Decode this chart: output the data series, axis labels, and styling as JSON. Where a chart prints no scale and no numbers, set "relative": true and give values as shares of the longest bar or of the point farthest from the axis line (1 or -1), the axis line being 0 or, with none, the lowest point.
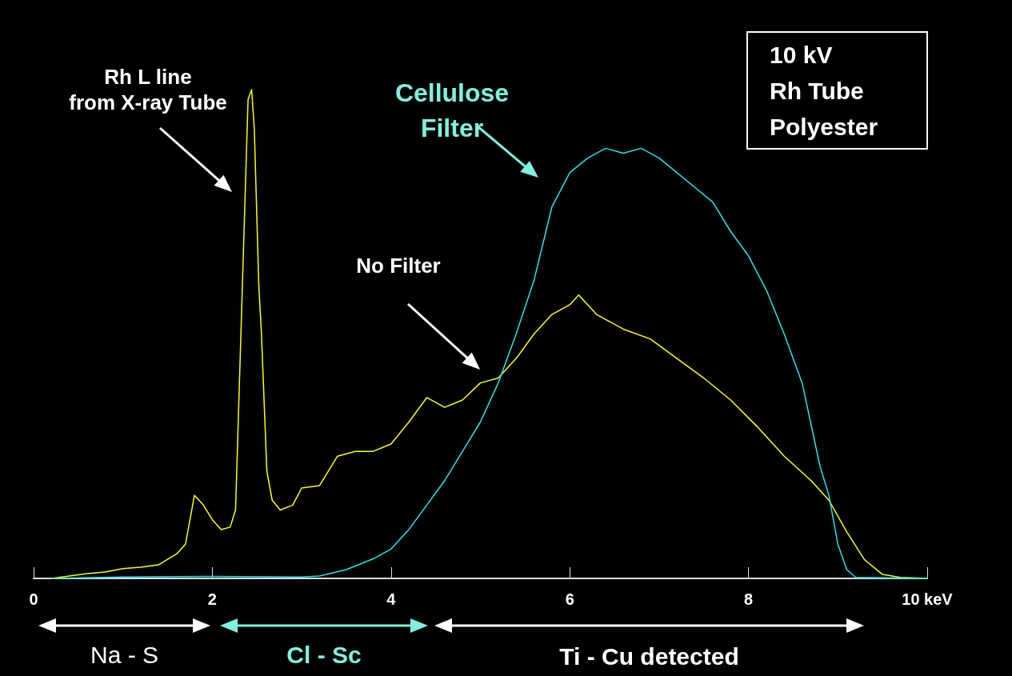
{
  "chart_data": {
    "type": "line",
    "relative": true,
    "xlim": [
      0,
      10
    ],
    "xticks": [
      0,
      2,
      4,
      6,
      8,
      {
        "value": 10,
        "label": "10 keV"
      }
    ],
    "grid": false,
    "marker": "none",
    "line_style": "solid",
    "series": [
      {
        "color": "#ffff00",
        "x": [
          0.2,
          0.4,
          0.6,
          0.8,
          1.0,
          1.2,
          1.4,
          1.6,
          1.7,
          1.8,
          1.9,
          2.0,
          2.1,
          2.2,
          2.26,
          2.4,
          2.44,
          2.47,
          2.52,
          2.55,
          2.61,
          2.67,
          2.76,
          2.9,
          3.0,
          3.2,
          3.4,
          3.6,
          3.8,
          4.0,
          4.2,
          4.4,
          4.6,
          4.8,
          5.0,
          5.2,
          5.4,
          5.6,
          5.8,
          6.0,
          6.1,
          6.3,
          6.6,
          6.9,
          7.2,
          7.5,
          7.8,
          8.1,
          8.4,
          8.7,
          8.9,
          9.1,
          9.3,
          9.5,
          9.7,
          10
        ],
        "values": [
          0,
          0.005,
          0.01,
          0.013,
          0.02,
          0.023,
          0.028,
          0.05,
          0.07,
          0.17,
          0.15,
          0.12,
          0.1,
          0.105,
          0.14,
          0.98,
          1,
          0.92,
          0.6,
          0.5,
          0.22,
          0.16,
          0.14,
          0.15,
          0.185,
          0.19,
          0.25,
          0.26,
          0.26,
          0.275,
          0.32,
          0.37,
          0.35,
          0.365,
          0.4,
          0.41,
          0.45,
          0.5,
          0.54,
          0.56,
          0.58,
          0.54,
          0.51,
          0.49,
          0.45,
          0.41,
          0.365,
          0.31,
          0.25,
          0.2,
          0.16,
          0.095,
          0.038,
          0.008,
          0.002,
          0
        ]
      },
      {
        "color": "#1ee6f0",
        "x": [
          0.2,
          1.0,
          2.0,
          3.0,
          3.2,
          3.5,
          3.8,
          4.0,
          4.2,
          4.4,
          4.6,
          4.8,
          5.0,
          5.2,
          5.4,
          5.6,
          5.8,
          6.0,
          6.2,
          6.4,
          6.6,
          6.8,
          7.0,
          7.2,
          7.4,
          7.6,
          7.8,
          8.0,
          8.2,
          8.4,
          8.6,
          8.8,
          8.9,
          9.0,
          9.1,
          9.2,
          10
        ],
        "values": [
          0,
          0.003,
          0.004,
          0.003,
          0.005,
          0.018,
          0.04,
          0.06,
          0.1,
          0.15,
          0.2,
          0.26,
          0.32,
          0.4,
          0.5,
          0.61,
          0.76,
          0.83,
          0.86,
          0.88,
          0.87,
          0.88,
          0.86,
          0.83,
          0.8,
          0.77,
          0.71,
          0.66,
          0.59,
          0.5,
          0.4,
          0.23,
          0.17,
          0.07,
          0.018,
          0.002,
          0
        ]
      }
    ],
    "annotations": [
      "Rh L line\nfrom X-ray Tube",
      "Cellulose\nFilter",
      "No Filter",
      "10 kV\nRh Tube\nPolyester",
      "Na - S",
      "Cl - Sc",
      "Ti - Cu detected"
    ]
  }
}
